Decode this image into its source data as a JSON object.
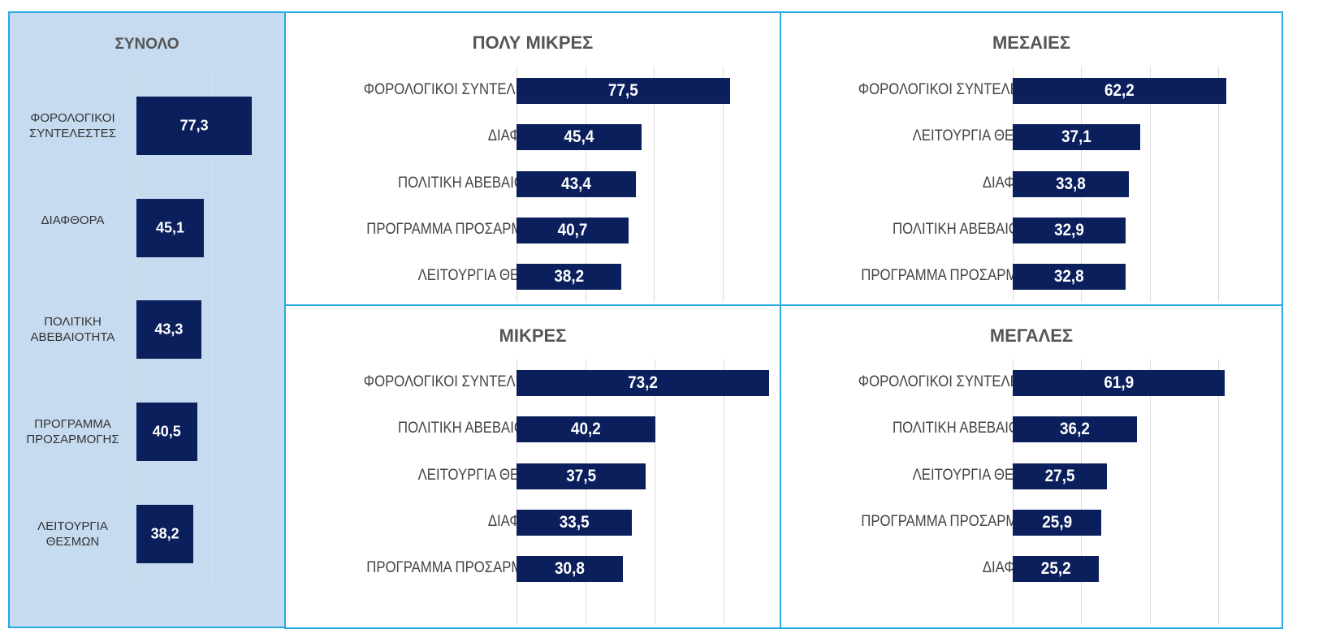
{
  "chart_data": [
    {
      "type": "bar",
      "title": "ΣΥΝΟΛΟ",
      "categories": [
        "ΦΟΡΟΛΟΓΙΚΟΙ ΣΥΝΤΕΛΕΣΤΕΣ",
        "ΔΙΑΦΘΟΡΑ",
        "ΠΟΛΙΤΙΚΗ ΑΒΕΒΑΙΟΤΗΤΑ",
        "ΠΡΟΓΡΑΜΜΑ ΠΡΟΣΑΡΜΟΓΗΣ",
        "ΛΕΙΤΟΥΡΓΙΑ ΘΕΣΜΩΝ"
      ],
      "values": [
        77.3,
        45.1,
        43.3,
        40.5,
        38.2
      ],
      "value_labels": [
        "77,3",
        "45,1",
        "43,3",
        "40,5",
        "38,2"
      ],
      "color": "#0b1f5c",
      "xlim": [
        0,
        100
      ],
      "xticks": [
        0,
        50,
        100
      ],
      "grid": true
    },
    {
      "type": "bar",
      "title": "ΠΟΛΥ ΜΙΚΡΕΣ",
      "categories": [
        "ΦΟΡΟΛΟΓΙΚΟΙ ΣΥΝΤΕΛΕΣΤΕΣ",
        "ΔΙΑΦΘΟΡΑ",
        "ΠΟΛΙΤΙΚΗ ΑΒΕΒΑΙΟΤΗΤΑ",
        "ΠΡΟΓΡΑΜΜΑ ΠΡΟΣΑΡΜΟΓΗΣ",
        "ΛΕΙΤΟΥΡΓΙΑ ΘΕΣΜΩΝ"
      ],
      "values": [
        77.5,
        45.4,
        43.4,
        40.7,
        38.2
      ],
      "value_labels": [
        "77,5",
        "45,4",
        "43,4",
        "40,7",
        "38,2"
      ],
      "color": "#0b1f5c",
      "xlim": [
        0,
        95
      ],
      "xticks": [
        0,
        25,
        50,
        75
      ],
      "grid": true
    },
    {
      "type": "bar",
      "title": "ΜΕΣΑΙΕΣ",
      "categories": [
        "ΦΟΡΟΛΟΓΙΚΟΙ ΣΥΝΤΕΛΕΣΤΕΣ",
        "ΛΕΙΤΟΥΡΓΙΑ ΘΕΣΜΩΝ",
        "ΔΙΑΦΘΟΡΑ",
        "ΠΟΛΙΤΙΚΗ ΑΒΕΒΑΙΟΤΗΤΑ",
        "ΠΡΟΓΡΑΜΜΑ ΠΡΟΣΑΡΜΟΓΗΣ"
      ],
      "values": [
        62.2,
        37.1,
        33.8,
        32.9,
        32.8
      ],
      "value_labels": [
        "62,2",
        "37,1",
        "33,8",
        "32,9",
        "32,8"
      ],
      "color": "#0b1f5c",
      "xlim": [
        0,
        76
      ],
      "xticks": [
        0,
        20,
        40,
        60
      ],
      "grid": true
    },
    {
      "type": "bar",
      "title": "ΜΙΚΡΕΣ",
      "categories": [
        "ΦΟΡΟΛΟΓΙΚΟΙ ΣΥΝΤΕΛΕΣΤΕΣ",
        "ΠΟΛΙΤΙΚΗ ΑΒΕΒΑΙΟΤΗΤΑ",
        "ΛΕΙΤΟΥΡΓΙΑ ΘΕΣΜΩΝ",
        "ΔΙΑΦΘΟΡΑ",
        "ΠΡΟΓΡΑΜΜΑ ΠΡΟΣΑΡΜΟΓΗΣ"
      ],
      "values": [
        73.2,
        40.2,
        37.5,
        33.5,
        30.8
      ],
      "value_labels": [
        "73,2",
        "40,2",
        "37,5",
        "33,5",
        "30,8"
      ],
      "color": "#0b1f5c",
      "xlim": [
        0,
        76
      ],
      "xticks": [
        0,
        20,
        40,
        60
      ],
      "grid": true
    },
    {
      "type": "bar",
      "title": "ΜΕΓΑΛΕΣ",
      "categories": [
        "ΦΟΡΟΛΟΓΙΚΟΙ ΣΥΝΤΕΛΕΣΤΕΣ",
        "ΠΟΛΙΤΙΚΗ ΑΒΕΒΑΙΟΤΗΤΑ",
        "ΛΕΙΤΟΥΡΓΙΑ ΘΕΣΜΩΝ",
        "ΠΡΟΓΡΑΜΜΑ ΠΡΟΣΑΡΜΟΓΗΣ",
        "ΔΙΑΦΘΟΡΑ"
      ],
      "values": [
        61.9,
        36.2,
        27.5,
        25.9,
        25.2
      ],
      "value_labels": [
        "61,9",
        "36,2",
        "27,5",
        "25,9",
        "25,2"
      ],
      "color": "#0b1f5c",
      "xlim": [
        0,
        76
      ],
      "xticks": [
        0,
        20,
        40,
        60
      ],
      "grid": true
    }
  ]
}
